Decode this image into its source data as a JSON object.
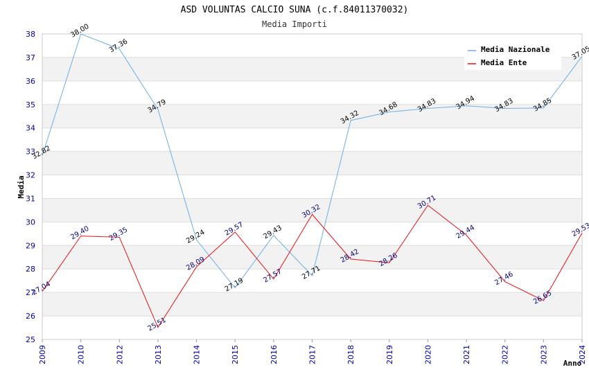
{
  "chart_data": {
    "type": "line",
    "title": "ASD VOLUNTAS CALCIO SUNA (c.f.84011370032)",
    "subtitle": "Media Importi",
    "xlabel": "Anno",
    "ylabel": "Media",
    "ylim": [
      25,
      38
    ],
    "yticks": [
      "25",
      "26",
      "27",
      "28",
      "29",
      "30",
      "31",
      "32",
      "33",
      "34",
      "35",
      "36",
      "37",
      "38"
    ],
    "categories": [
      "2009",
      "2010",
      "2012",
      "2013",
      "2014",
      "2015",
      "2016",
      "2017",
      "2018",
      "2019",
      "2020",
      "2021",
      "2022",
      "2023",
      "2024"
    ],
    "series": [
      {
        "name": "Media Nazionale",
        "color": "#6aaee8",
        "values": [
          32.82,
          38.0,
          37.36,
          34.79,
          29.24,
          27.19,
          29.43,
          27.71,
          34.32,
          34.68,
          34.83,
          34.94,
          34.83,
          34.85,
          37.05
        ],
        "labels": [
          "32.82",
          "38.00",
          "37.36",
          "34.79",
          "29.24",
          "27.19",
          "29.43",
          "27.71",
          "34.32",
          "34.68",
          "34.83",
          "34.94",
          "34.83",
          "34.85",
          "37.05"
        ]
      },
      {
        "name": "Media Ente",
        "color": "#e81010",
        "values": [
          27.04,
          29.4,
          29.35,
          25.51,
          28.09,
          29.57,
          27.57,
          30.32,
          28.42,
          28.26,
          30.71,
          29.44,
          27.46,
          26.65,
          29.53
        ],
        "labels": [
          "27.04",
          "29.40",
          "29.35",
          "25.51",
          "28.09",
          "29.57",
          "27.57",
          "30.32",
          "28.42",
          "28.26",
          "30.71",
          "29.44",
          "27.46",
          "26.65",
          "29.53"
        ]
      }
    ],
    "grid": true,
    "legend": "top-right"
  }
}
